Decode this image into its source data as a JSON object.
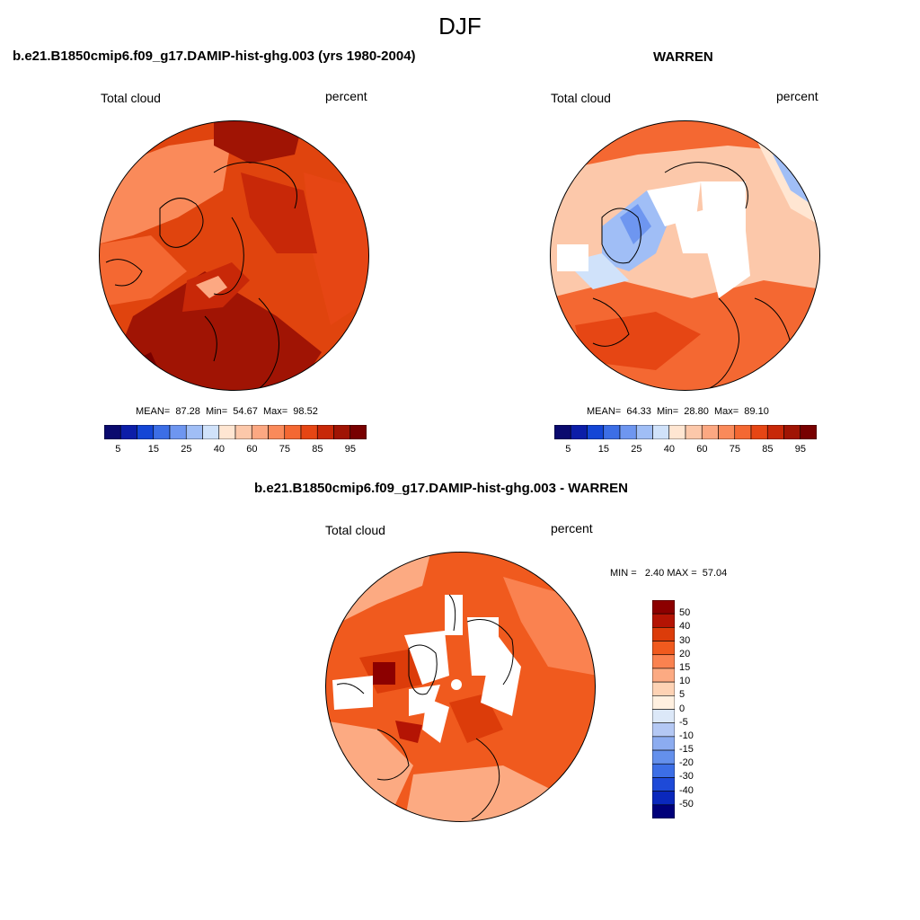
{
  "figure": {
    "title": "DJF"
  },
  "panels": [
    {
      "title": "b.e21.B1850cmip6.f09_g17.DAMIP-hist-ghg.003 (yrs 1980-2004)",
      "variable": "Total cloud",
      "units": "percent",
      "stats": {
        "mean_label": "MEAN=",
        "mean": "87.28",
        "min_label": "Min=",
        "min": "54.67",
        "max_label": "Max=",
        "max": "98.52"
      },
      "colorbar": {
        "tick_labels": [
          "5",
          "15",
          "25",
          "40",
          "60",
          "75",
          "85",
          "95"
        ],
        "colors": [
          "#0a0a6e",
          "#0c1ea8",
          "#1446d6",
          "#3c6ee6",
          "#6e96f0",
          "#a0bef6",
          "#d0e2fa",
          "#ffe6d2",
          "#fcc8aa",
          "#fca882",
          "#fa8a5a",
          "#f46832",
          "#e64614",
          "#c82808",
          "#a01404",
          "#780000"
        ]
      },
      "map_note": "North Polar stereographic field dominated by dark red/orange (high cloud cover)"
    },
    {
      "title": "WARREN",
      "variable": "Total cloud",
      "units": "percent",
      "stats": {
        "mean_label": "MEAN=",
        "mean": "64.33",
        "min_label": "Min=",
        "min": "28.80",
        "max_label": "Max=",
        "max": "89.10"
      },
      "colorbar": {
        "tick_labels": [
          "5",
          "15",
          "25",
          "40",
          "60",
          "75",
          "85",
          "95"
        ],
        "colors": [
          "#0a0a6e",
          "#0c1ea8",
          "#1446d6",
          "#3c6ee6",
          "#6e96f0",
          "#a0bef6",
          "#d0e2fa",
          "#ffe6d2",
          "#fcc8aa",
          "#fca882",
          "#fa8a5a",
          "#f46832",
          "#e64614",
          "#c82808",
          "#a01404",
          "#780000"
        ]
      }
    },
    {
      "title": "b.e21.B1850cmip6.f09_g17.DAMIP-hist-ghg.003 - WARREN",
      "variable": "Total cloud",
      "units": "percent",
      "stats": {
        "min_label": "MIN =",
        "min": "2.40",
        "max_label": "MAX =",
        "max": "57.04"
      },
      "colorbar": {
        "tick_labels": [
          "50",
          "40",
          "30",
          "20",
          "15",
          "10",
          "5",
          "0",
          "-5",
          "-10",
          "-15",
          "-20",
          "-30",
          "-40",
          "-50"
        ],
        "colors": [
          "#8c0000",
          "#b41404",
          "#dc3c0a",
          "#f05a1e",
          "#fa8250",
          "#fcaa82",
          "#fdd2b4",
          "#fff0e0",
          "#dce8f8",
          "#b4c8f4",
          "#8cacf0",
          "#6490ec",
          "#3c6ee6",
          "#1e4ad8",
          "#0a28bc",
          "#00007a"
        ]
      }
    }
  ],
  "colors": {
    "ocean_red": "#e0440e",
    "dark_red": "#a01404",
    "missing": "#ffffff",
    "coast": "#000000"
  }
}
